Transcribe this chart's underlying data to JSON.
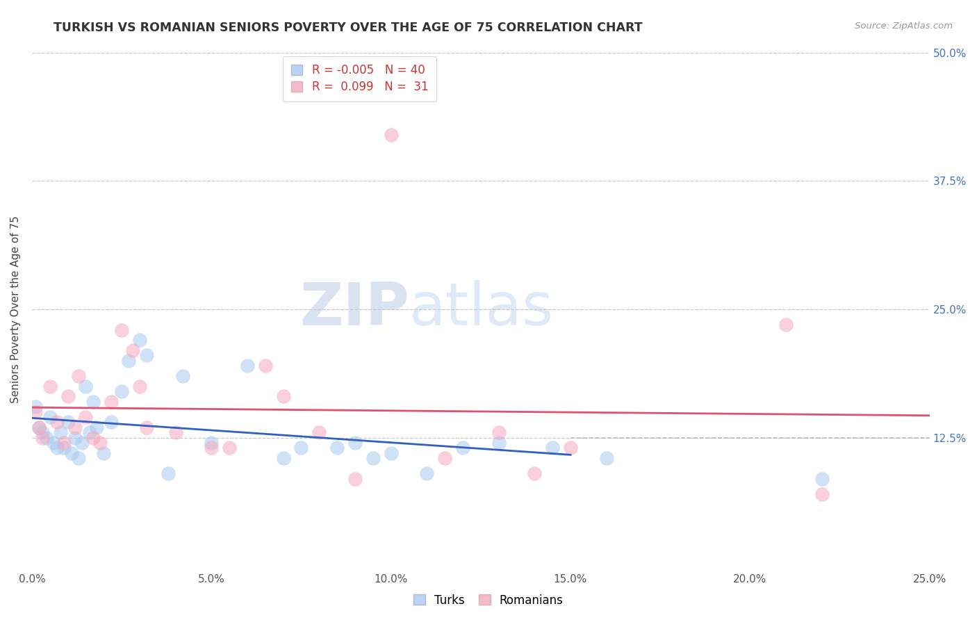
{
  "title": "TURKISH VS ROMANIAN SENIORS POVERTY OVER THE AGE OF 75 CORRELATION CHART",
  "source": "Source: ZipAtlas.com",
  "ylabel": "Seniors Poverty Over the Age of 75",
  "xlim": [
    0.0,
    0.25
  ],
  "ylim": [
    -0.005,
    0.505
  ],
  "xtick_labels": [
    "0.0%",
    "5.0%",
    "10.0%",
    "15.0%",
    "20.0%",
    "25.0%"
  ],
  "xtick_vals": [
    0.0,
    0.05,
    0.1,
    0.15,
    0.2,
    0.25
  ],
  "ytick_vals": [
    0.125,
    0.25,
    0.375,
    0.5
  ],
  "ytick_right_labels": [
    "12.5%",
    "25.0%",
    "37.5%",
    "50.0%"
  ],
  "turks_color": "#a8caf0",
  "romanians_color": "#f4a8bc",
  "turks_R": "-0.005",
  "turks_N": "40",
  "romanians_R": " 0.099",
  "romanians_N": " 31",
  "turks_line_color": "#3060c0",
  "romanians_line_color": "#e05070",
  "grid_color": "#c8c8c8",
  "background_color": "#ffffff",
  "watermark_zip": "ZIP",
  "watermark_atlas": "atlas",
  "turks_x": [
    0.001,
    0.002,
    0.003,
    0.004,
    0.005,
    0.006,
    0.007,
    0.008,
    0.009,
    0.01,
    0.011,
    0.012,
    0.013,
    0.014,
    0.015,
    0.016,
    0.017,
    0.018,
    0.02,
    0.022,
    0.025,
    0.027,
    0.03,
    0.032,
    0.038,
    0.042,
    0.05,
    0.06,
    0.07,
    0.075,
    0.085,
    0.09,
    0.095,
    0.1,
    0.11,
    0.12,
    0.13,
    0.145,
    0.16,
    0.22
  ],
  "turks_y": [
    0.155,
    0.135,
    0.13,
    0.125,
    0.145,
    0.12,
    0.115,
    0.13,
    0.115,
    0.14,
    0.11,
    0.125,
    0.105,
    0.12,
    0.175,
    0.13,
    0.16,
    0.135,
    0.11,
    0.14,
    0.17,
    0.2,
    0.22,
    0.205,
    0.09,
    0.185,
    0.12,
    0.195,
    0.105,
    0.115,
    0.115,
    0.12,
    0.105,
    0.11,
    0.09,
    0.115,
    0.12,
    0.115,
    0.105,
    0.085
  ],
  "romanians_x": [
    0.001,
    0.002,
    0.003,
    0.005,
    0.007,
    0.009,
    0.01,
    0.012,
    0.013,
    0.015,
    0.017,
    0.019,
    0.022,
    0.025,
    0.028,
    0.03,
    0.032,
    0.04,
    0.05,
    0.055,
    0.065,
    0.07,
    0.08,
    0.09,
    0.1,
    0.115,
    0.13,
    0.14,
    0.15,
    0.21,
    0.22
  ],
  "romanians_y": [
    0.15,
    0.135,
    0.125,
    0.175,
    0.14,
    0.12,
    0.165,
    0.135,
    0.185,
    0.145,
    0.125,
    0.12,
    0.16,
    0.23,
    0.21,
    0.175,
    0.135,
    0.13,
    0.115,
    0.115,
    0.195,
    0.165,
    0.13,
    0.085,
    0.42,
    0.105,
    0.13,
    0.09,
    0.115,
    0.235,
    0.07
  ],
  "dashed_line_y": 0.125,
  "dashed_line_xstart": 0.6,
  "dashed_line_xend": 1.0,
  "blue_solid_line_xend": 0.6
}
